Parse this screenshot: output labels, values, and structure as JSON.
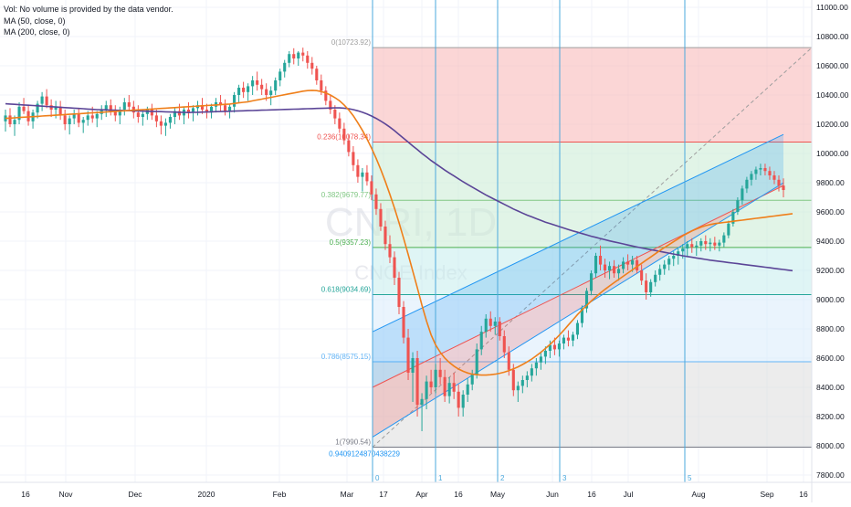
{
  "legend": {
    "volume_note": "Vol: No volume is provided by the data vendor.",
    "ma50": "MA (50, close, 0)",
    "ma200": "MA (200, close, 0)"
  },
  "watermark": {
    "symbol": "CNRI, 1D",
    "name": "CNOE Index"
  },
  "colors": {
    "up": "#26a69a",
    "down": "#ef5350",
    "ma50": "#ef7f1a",
    "ma200": "#5b4597",
    "fib_red": "#f8b4b4",
    "fib_green": "#c8ebd4",
    "fib_teal": "#c5ecec",
    "fib_blue": "#d9ebfb",
    "fib_gray": "#dcdcdc",
    "cycle_line": "#4ba8dc"
  },
  "chart_data": {
    "type": "candlestick",
    "y_axis": {
      "min": 7800,
      "max": 11000,
      "ticks": [
        "11000.00",
        "10800.00",
        "10600.00",
        "10400.00",
        "10200.00",
        "10000.00",
        "9800.00",
        "9600.00",
        "9400.00",
        "9200.00",
        "9000.00",
        "8800.00",
        "8600.00",
        "8400.00",
        "8200.00",
        "8000.00",
        "7800.00"
      ]
    },
    "x_axis": {
      "ticks": [
        "16",
        "Nov",
        "Dec",
        "2020",
        "Feb",
        "Mar",
        "17",
        "Apr",
        "16",
        "May",
        "Jun",
        "16",
        "Jul",
        "Aug",
        "Sep",
        "16"
      ]
    },
    "fibonacci": [
      {
        "level": "0",
        "price": 10723.92,
        "label": "0(10723.92)"
      },
      {
        "level": "0.236",
        "price": 10078.34,
        "label": "0.236(10078.34)"
      },
      {
        "level": "0.382",
        "price": 9679.77,
        "label": "0.382(9679.77)"
      },
      {
        "level": "0.5",
        "price": 9357.23,
        "label": "0.5(9357.23)"
      },
      {
        "level": "0.618",
        "price": 9034.69,
        "label": "0.618(9034.69)"
      },
      {
        "level": "0.786",
        "price": 8575.15,
        "label": "0.786(8575.15)"
      },
      {
        "level": "1",
        "price": 7990.54,
        "label": "1(7990.54)"
      }
    ],
    "fib_extra_label": "0.9409124870438229",
    "cycle_lines": [
      "0",
      "1",
      "2",
      "3",
      "5"
    ],
    "channel": {
      "lower_start": 8060,
      "lower_end": 9800,
      "mid_start": 8400,
      "mid_end": 9780,
      "upper_start": 8780,
      "upper_end": 10130
    },
    "ohlc": [
      [
        10220,
        10300,
        10150,
        10260
      ],
      [
        10260,
        10310,
        10180,
        10200
      ],
      [
        10200,
        10260,
        10120,
        10230
      ],
      [
        10230,
        10350,
        10200,
        10320
      ],
      [
        10320,
        10380,
        10270,
        10290
      ],
      [
        10290,
        10330,
        10190,
        10220
      ],
      [
        10220,
        10300,
        10170,
        10280
      ],
      [
        10280,
        10360,
        10240,
        10340
      ],
      [
        10340,
        10420,
        10290,
        10390
      ],
      [
        10390,
        10440,
        10310,
        10330
      ],
      [
        10330,
        10370,
        10250,
        10300
      ],
      [
        10300,
        10360,
        10240,
        10320
      ],
      [
        10320,
        10360,
        10230,
        10260
      ],
      [
        10260,
        10300,
        10160,
        10200
      ],
      [
        10200,
        10260,
        10130,
        10240
      ],
      [
        10240,
        10300,
        10200,
        10270
      ],
      [
        10270,
        10310,
        10180,
        10210
      ],
      [
        10210,
        10250,
        10140,
        10230
      ],
      [
        10230,
        10290,
        10190,
        10260
      ],
      [
        10260,
        10320,
        10210,
        10240
      ],
      [
        10240,
        10290,
        10180,
        10270
      ],
      [
        10270,
        10330,
        10230,
        10300
      ],
      [
        10300,
        10360,
        10250,
        10330
      ],
      [
        10330,
        10370,
        10260,
        10290
      ],
      [
        10290,
        10330,
        10220,
        10260
      ],
      [
        10260,
        10320,
        10200,
        10300
      ],
      [
        10300,
        10380,
        10260,
        10350
      ],
      [
        10350,
        10400,
        10290,
        10320
      ],
      [
        10320,
        10360,
        10240,
        10280
      ],
      [
        10280,
        10330,
        10210,
        10250
      ],
      [
        10250,
        10300,
        10190,
        10270
      ],
      [
        10270,
        10320,
        10230,
        10300
      ],
      [
        10300,
        10340,
        10230,
        10260
      ],
      [
        10260,
        10300,
        10180,
        10220
      ],
      [
        10220,
        10260,
        10130,
        10190
      ],
      [
        10190,
        10240,
        10120,
        10210
      ],
      [
        10210,
        10270,
        10170,
        10250
      ],
      [
        10250,
        10310,
        10200,
        10290
      ],
      [
        10290,
        10340,
        10230,
        10260
      ],
      [
        10260,
        10320,
        10200,
        10300
      ],
      [
        10300,
        10350,
        10240,
        10280
      ],
      [
        10280,
        10330,
        10220,
        10310
      ],
      [
        10310,
        10360,
        10260,
        10330
      ],
      [
        10330,
        10380,
        10270,
        10300
      ],
      [
        10300,
        10340,
        10240,
        10280
      ],
      [
        10280,
        10340,
        10240,
        10320
      ],
      [
        10320,
        10380,
        10280,
        10350
      ],
      [
        10350,
        10400,
        10290,
        10330
      ],
      [
        10330,
        10370,
        10260,
        10290
      ],
      [
        10290,
        10340,
        10240,
        10320
      ],
      [
        10320,
        10420,
        10280,
        10400
      ],
      [
        10400,
        10470,
        10350,
        10450
      ],
      [
        10450,
        10490,
        10380,
        10420
      ],
      [
        10420,
        10480,
        10360,
        10460
      ],
      [
        10460,
        10530,
        10400,
        10500
      ],
      [
        10500,
        10560,
        10430,
        10470
      ],
      [
        10470,
        10510,
        10400,
        10440
      ],
      [
        10440,
        10480,
        10360,
        10400
      ],
      [
        10400,
        10460,
        10330,
        10430
      ],
      [
        10430,
        10520,
        10400,
        10500
      ],
      [
        10500,
        10580,
        10460,
        10560
      ],
      [
        10560,
        10640,
        10520,
        10620
      ],
      [
        10620,
        10700,
        10590,
        10680
      ],
      [
        10680,
        10720,
        10610,
        10650
      ],
      [
        10650,
        10700,
        10600,
        10690
      ],
      [
        10690,
        10724,
        10630,
        10670
      ],
      [
        10670,
        10700,
        10580,
        10620
      ],
      [
        10620,
        10660,
        10540,
        10580
      ],
      [
        10580,
        10600,
        10470,
        10500
      ],
      [
        10500,
        10540,
        10400,
        10430
      ],
      [
        10430,
        10460,
        10330,
        10360
      ],
      [
        10360,
        10400,
        10270,
        10300
      ],
      [
        10300,
        10330,
        10200,
        10240
      ],
      [
        10240,
        10280,
        10140,
        10170
      ],
      [
        10170,
        10210,
        10060,
        10090
      ],
      [
        10090,
        10130,
        9980,
        10010
      ],
      [
        10010,
        10050,
        9880,
        9920
      ],
      [
        9920,
        9960,
        9800,
        9840
      ],
      [
        9840,
        9900,
        9740,
        9870
      ],
      [
        9870,
        9920,
        9780,
        9810
      ],
      [
        9810,
        9850,
        9680,
        9720
      ],
      [
        9720,
        9760,
        9580,
        9620
      ],
      [
        9620,
        9660,
        9470,
        9500
      ],
      [
        9500,
        9540,
        9340,
        9380
      ],
      [
        9380,
        9440,
        9250,
        9290
      ],
      [
        9290,
        9330,
        9100,
        9150
      ],
      [
        9150,
        9190,
        8900,
        8950
      ],
      [
        8950,
        8990,
        8700,
        8740
      ],
      [
        8740,
        8800,
        8450,
        8500
      ],
      [
        8500,
        8640,
        8300,
        8600
      ],
      [
        8600,
        8650,
        8200,
        8280
      ],
      [
        8280,
        8360,
        8100,
        8320
      ],
      [
        8320,
        8480,
        8250,
        8440
      ],
      [
        8440,
        8520,
        8360,
        8400
      ],
      [
        8400,
        8560,
        8360,
        8520
      ],
      [
        8520,
        8600,
        8420,
        8470
      ],
      [
        8470,
        8520,
        8300,
        8340
      ],
      [
        8340,
        8470,
        8290,
        8430
      ],
      [
        8430,
        8500,
        8320,
        8370
      ],
      [
        8370,
        8420,
        8200,
        8260
      ],
      [
        8260,
        8380,
        8200,
        8350
      ],
      [
        8350,
        8460,
        8300,
        8420
      ],
      [
        8420,
        8520,
        8380,
        8490
      ],
      [
        8490,
        8700,
        8460,
        8660
      ],
      [
        8660,
        8820,
        8620,
        8780
      ],
      [
        8780,
        8900,
        8740,
        8870
      ],
      [
        8870,
        8920,
        8780,
        8820
      ],
      [
        8820,
        8880,
        8760,
        8850
      ],
      [
        8850,
        8880,
        8720,
        8750
      ],
      [
        8750,
        8790,
        8600,
        8640
      ],
      [
        8640,
        8680,
        8480,
        8520
      ],
      [
        8520,
        8560,
        8340,
        8380
      ],
      [
        8380,
        8440,
        8300,
        8410
      ],
      [
        8410,
        8480,
        8360,
        8450
      ],
      [
        8450,
        8510,
        8400,
        8480
      ],
      [
        8480,
        8560,
        8440,
        8530
      ],
      [
        8530,
        8600,
        8480,
        8570
      ],
      [
        8570,
        8640,
        8520,
        8610
      ],
      [
        8610,
        8680,
        8560,
        8650
      ],
      [
        8650,
        8720,
        8600,
        8690
      ],
      [
        8690,
        8740,
        8620,
        8660
      ],
      [
        8660,
        8720,
        8610,
        8700
      ],
      [
        8700,
        8760,
        8660,
        8740
      ],
      [
        8740,
        8790,
        8680,
        8720
      ],
      [
        8720,
        8780,
        8680,
        8760
      ],
      [
        8760,
        8860,
        8730,
        8840
      ],
      [
        8840,
        8960,
        8810,
        8940
      ],
      [
        8940,
        9080,
        8910,
        9060
      ],
      [
        9060,
        9200,
        9030,
        9180
      ],
      [
        9180,
        9320,
        9150,
        9300
      ],
      [
        9300,
        9370,
        9200,
        9240
      ],
      [
        9240,
        9280,
        9150,
        9200
      ],
      [
        9200,
        9260,
        9140,
        9230
      ],
      [
        9230,
        9270,
        9150,
        9180
      ],
      [
        9180,
        9240,
        9130,
        9210
      ],
      [
        9210,
        9290,
        9180,
        9260
      ],
      [
        9260,
        9310,
        9200,
        9240
      ],
      [
        9240,
        9300,
        9190,
        9270
      ],
      [
        9270,
        9300,
        9180,
        9200
      ],
      [
        9200,
        9240,
        9100,
        9130
      ],
      [
        9130,
        9180,
        9000,
        9050
      ],
      [
        9050,
        9140,
        9020,
        9120
      ],
      [
        9120,
        9200,
        9090,
        9170
      ],
      [
        9170,
        9240,
        9130,
        9210
      ],
      [
        9210,
        9270,
        9170,
        9240
      ],
      [
        9240,
        9300,
        9200,
        9280
      ],
      [
        9280,
        9330,
        9230,
        9300
      ],
      [
        9300,
        9350,
        9240,
        9330
      ],
      [
        9330,
        9380,
        9280,
        9350
      ],
      [
        9350,
        9400,
        9300,
        9380
      ],
      [
        9380,
        9420,
        9320,
        9360
      ],
      [
        9360,
        9400,
        9300,
        9370
      ],
      [
        9370,
        9420,
        9330,
        9400
      ],
      [
        9400,
        9440,
        9340,
        9380
      ],
      [
        9380,
        9420,
        9330,
        9390
      ],
      [
        9390,
        9430,
        9340,
        9370
      ],
      [
        9370,
        9410,
        9330,
        9390
      ],
      [
        9390,
        9460,
        9360,
        9440
      ],
      [
        9440,
        9540,
        9420,
        9520
      ],
      [
        9520,
        9620,
        9500,
        9600
      ],
      [
        9600,
        9700,
        9580,
        9680
      ],
      [
        9680,
        9780,
        9650,
        9760
      ],
      [
        9760,
        9840,
        9730,
        9820
      ],
      [
        9820,
        9880,
        9780,
        9860
      ],
      [
        9860,
        9910,
        9820,
        9890
      ],
      [
        9890,
        9930,
        9850,
        9900
      ],
      [
        9900,
        9930,
        9850,
        9880
      ],
      [
        9880,
        9910,
        9820,
        9850
      ],
      [
        9850,
        9880,
        9790,
        9820
      ],
      [
        9820,
        9850,
        9740,
        9780
      ],
      [
        9780,
        9830,
        9700,
        9750
      ]
    ],
    "ma50": [
      10240,
      10242,
      10244,
      10246,
      10248,
      10250,
      10252,
      10254,
      10256,
      10258,
      10260,
      10262,
      10264,
      10266,
      10268,
      10270,
      10272,
      10274,
      10276,
      10278,
      10280,
      10282,
      10284,
      10286,
      10288,
      10290,
      10292,
      10294,
      10296,
      10298,
      10300,
      10302,
      10304,
      10306,
      10308,
      10310,
      10312,
      10314,
      10316,
      10318,
      10320,
      10322,
      10324,
      10326,
      10328,
      10330,
      10332,
      10334,
      10336,
      10338,
      10342,
      10346,
      10350,
      10354,
      10360,
      10366,
      10372,
      10378,
      10384,
      10390,
      10396,
      10402,
      10408,
      10414,
      10420,
      10426,
      10430,
      10432,
      10430,
      10424,
      10414,
      10400,
      10382,
      10360,
      10332,
      10298,
      10258,
      10210,
      10158,
      10100,
      10036,
      9966,
      9890,
      9808,
      9720,
      9626,
      9526,
      9420,
      9310,
      9196,
      9080,
      8962,
      8854,
      8760,
      8690,
      8640,
      8600,
      8570,
      8545,
      8525,
      8510,
      8498,
      8490,
      8486,
      8484,
      8484,
      8486,
      8490,
      8496,
      8504,
      8514,
      8526,
      8540,
      8556,
      8574,
      8594,
      8616,
      8640,
      8666,
      8694,
      8724,
      8756,
      8790,
      8826,
      8862,
      8898,
      8930,
      8960,
      8990,
      9018,
      9045,
      9070,
      9094,
      9116,
      9138,
      9160,
      9182,
      9204,
      9226,
      9248,
      9270,
      9292,
      9314,
      9336,
      9356,
      9376,
      9396,
      9416,
      9436,
      9454,
      9470,
      9484,
      9496,
      9506,
      9514,
      9520,
      9524,
      9528,
      9532,
      9536,
      9540,
      9544,
      9548,
      9552,
      9556,
      9560,
      9564,
      9568,
      9572,
      9576,
      9580,
      9584,
      9588
    ],
    "ma200": [
      10340,
      10338,
      10336,
      10334,
      10332,
      10330,
      10328,
      10326,
      10324,
      10322,
      10320,
      10318,
      10316,
      10314,
      10312,
      10310,
      10308,
      10306,
      10304,
      10302,
      10300,
      10299,
      10298,
      10297,
      10296,
      10295,
      10294,
      10293,
      10292,
      10291,
      10290,
      10289,
      10288,
      10287,
      10286,
      10285,
      10284,
      10283,
      10282,
      10281,
      10280,
      10281,
      10282,
      10283,
      10284,
      10285,
      10286,
      10287,
      10288,
      10289,
      10290,
      10291,
      10292,
      10293,
      10294,
      10295,
      10296,
      10297,
      10298,
      10299,
      10300,
      10301,
      10302,
      10303,
      10304,
      10305,
      10306,
      10307,
      10308,
      10309,
      10310,
      10311,
      10312,
      10312,
      10310,
      10306,
      10300,
      10292,
      10282,
      10270,
      10256,
      10240,
      10222,
      10202,
      10180,
      10156,
      10130,
      10104,
      10078,
      10052,
      10026,
      10000,
      9976,
      9952,
      9930,
      9908,
      9886,
      9866,
      9846,
      9826,
      9806,
      9788,
      9770,
      9752,
      9734,
      9716,
      9700,
      9684,
      9668,
      9652,
      9636,
      9620,
      9606,
      9592,
      9578,
      9566,
      9554,
      9542,
      9530,
      9520,
      9510,
      9500,
      9490,
      9480,
      9470,
      9461,
      9452,
      9443,
      9434,
      9426,
      9418,
      9410,
      9402,
      9395,
      9388,
      9381,
      9374,
      9367,
      9360,
      9354,
      9348,
      9342,
      9336,
      9330,
      9324,
      9318,
      9312,
      9306,
      9300,
      9295,
      9290,
      9285,
      9280,
      9275,
      9270,
      9266,
      9262,
      9258,
      9254,
      9250,
      9246,
      9242,
      9238,
      9234,
      9230,
      9226,
      9222,
      9218,
      9214,
      9210,
      9206,
      9202,
      9198
    ]
  }
}
